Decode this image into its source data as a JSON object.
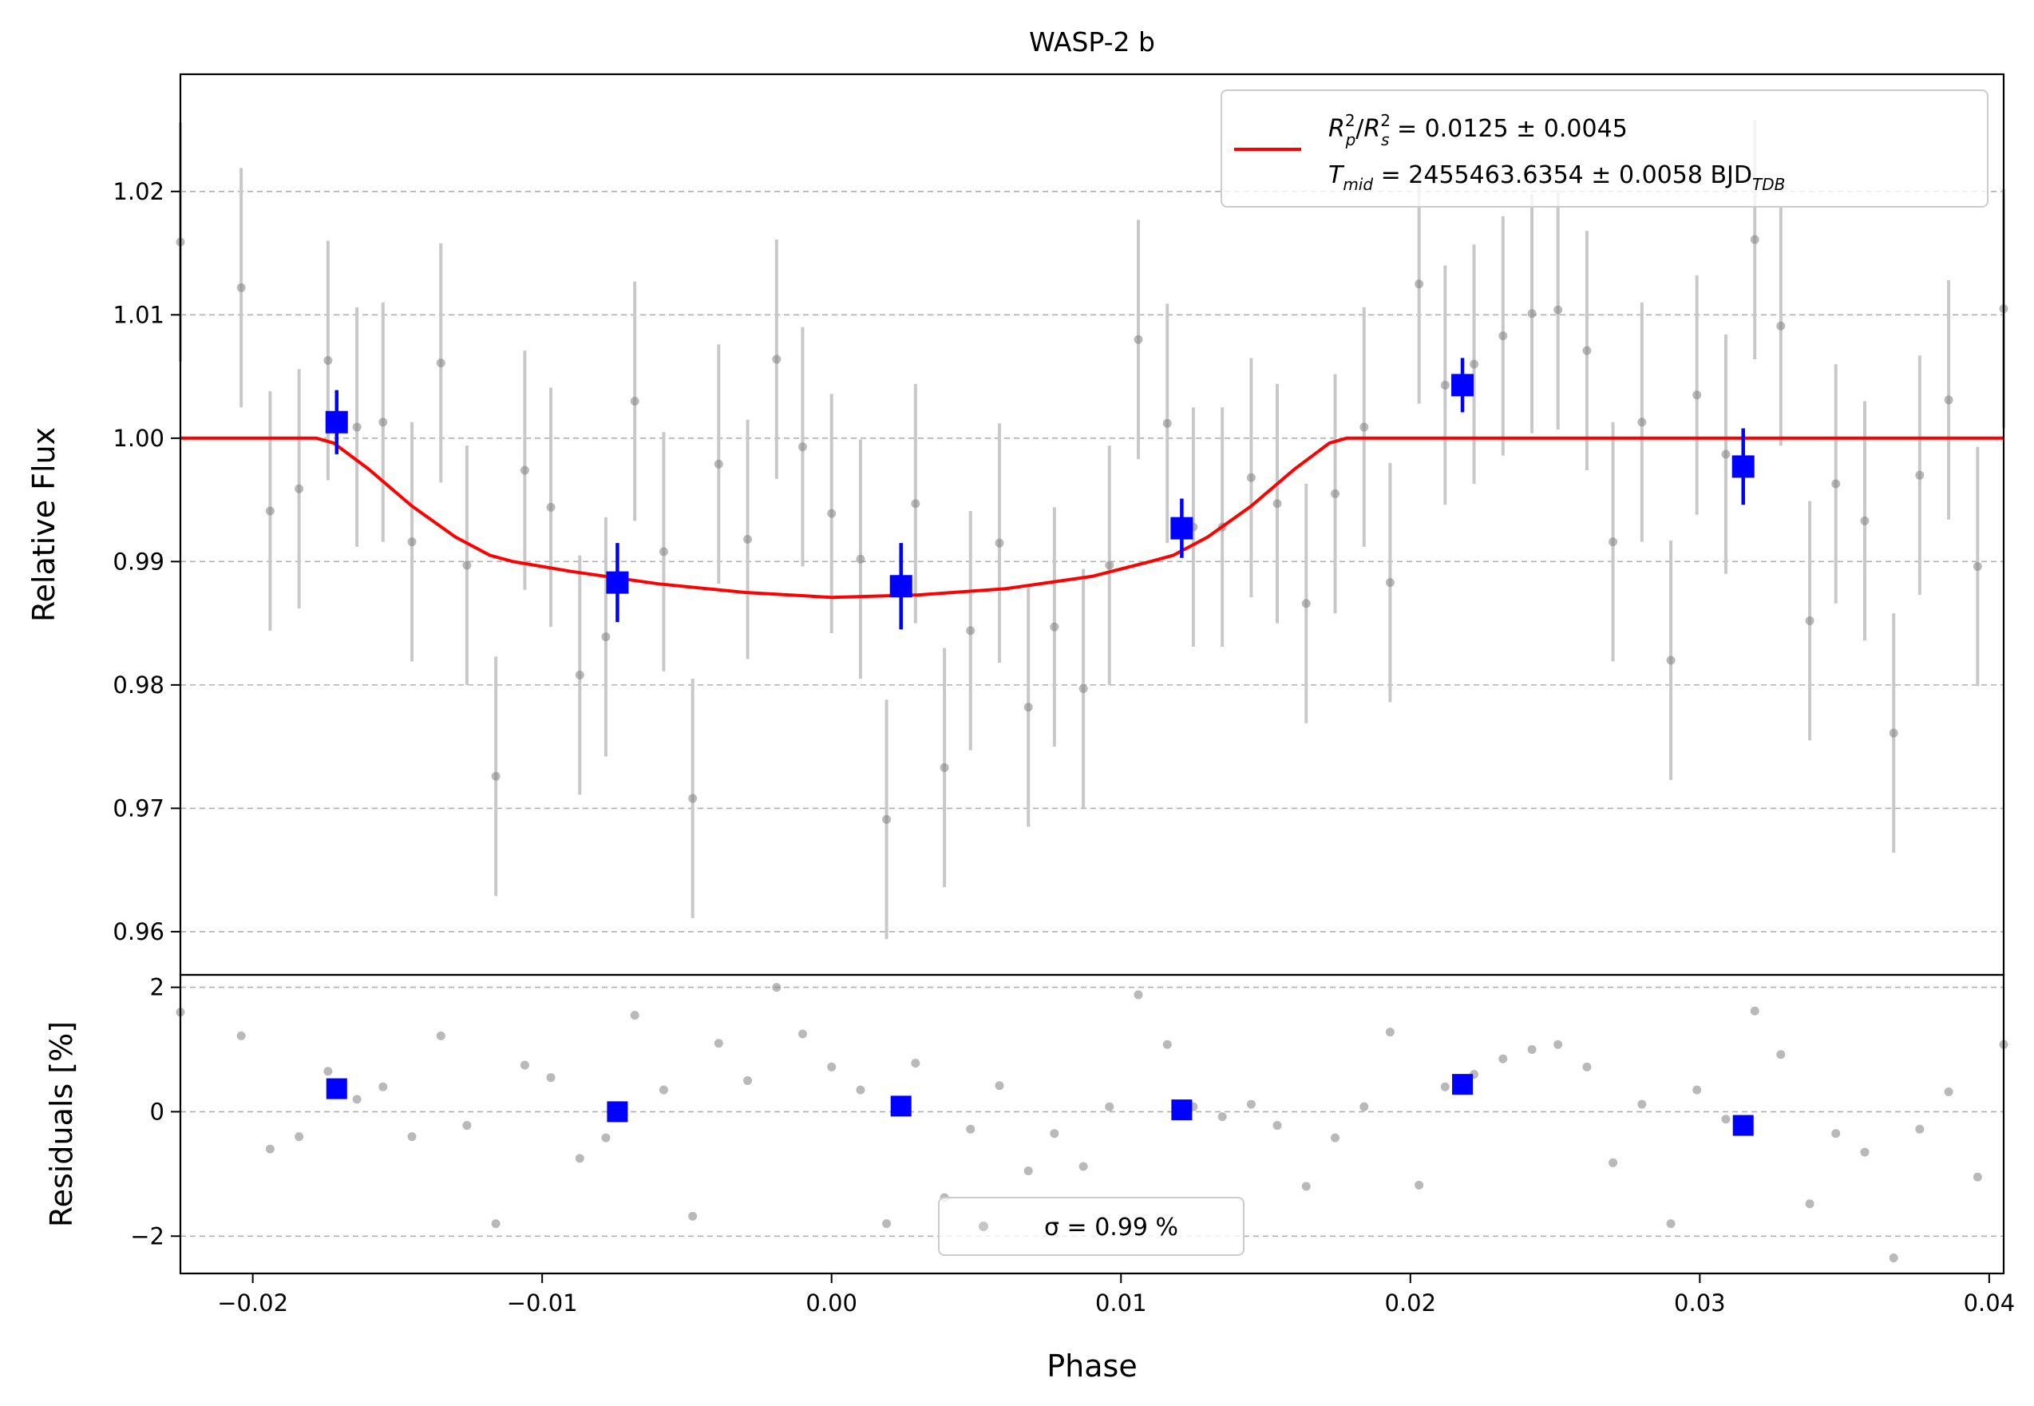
{
  "chart_data": {
    "type": "scatter",
    "title": "WASP-2 b",
    "xlabel": "Phase",
    "xlim": [
      -0.0225,
      0.0405
    ],
    "x_ticks": [
      "−0.02",
      "−0.01",
      "0.00",
      "0.01",
      "0.02",
      "0.03",
      "0.04"
    ],
    "x_tick_values": [
      -0.02,
      -0.01,
      0.0,
      0.01,
      0.02,
      0.03,
      0.04
    ],
    "grid": "horizontal dashed",
    "colors": {
      "data": "#808080",
      "errorbar": "#c8c8c8",
      "binned": "#0000ff",
      "model": "#ff0000",
      "grid": "#b0b0b0"
    },
    "top_panel": {
      "ylabel": "Relative Flux",
      "ylim": [
        0.9565,
        1.0295
      ],
      "y_ticks": [
        "0.96",
        "0.97",
        "0.98",
        "0.99",
        "1.00",
        "1.01",
        "1.02"
      ],
      "y_tick_values": [
        0.96,
        0.97,
        0.98,
        0.99,
        1.0,
        1.01,
        1.02
      ],
      "series": [
        {
          "kind": "data",
          "marker": "circle",
          "yerr": 0.0097,
          "points": [
            [
              -0.0225,
              1.0159
            ],
            [
              -0.0204,
              1.0122
            ],
            [
              -0.0194,
              0.9941
            ],
            [
              -0.0184,
              0.9959
            ],
            [
              -0.0174,
              1.0063
            ],
            [
              -0.0164,
              1.0009
            ],
            [
              -0.0155,
              1.0013
            ],
            [
              -0.0145,
              0.9916
            ],
            [
              -0.0135,
              1.0061
            ],
            [
              -0.0126,
              0.9897
            ],
            [
              -0.0116,
              0.9726
            ],
            [
              -0.0106,
              0.9974
            ],
            [
              -0.0097,
              0.9944
            ],
            [
              -0.0087,
              0.9808
            ],
            [
              -0.0078,
              0.9839
            ],
            [
              -0.0068,
              1.003
            ],
            [
              -0.0058,
              0.9908
            ],
            [
              -0.0048,
              0.9708
            ],
            [
              -0.0039,
              0.9979
            ],
            [
              -0.0029,
              0.9918
            ],
            [
              -0.0019,
              1.0064
            ],
            [
              -0.001,
              0.9993
            ],
            [
              0.0,
              0.9939
            ],
            [
              0.001,
              0.9902
            ],
            [
              0.0019,
              0.9691
            ],
            [
              0.0029,
              0.9947
            ],
            [
              0.0039,
              0.9733
            ],
            [
              0.0048,
              0.9844
            ],
            [
              0.0058,
              0.9915
            ],
            [
              0.0068,
              0.9782
            ],
            [
              0.0077,
              0.9847
            ],
            [
              0.0087,
              0.9797
            ],
            [
              0.0096,
              0.9897
            ],
            [
              0.0106,
              1.008
            ],
            [
              0.0116,
              1.0012
            ],
            [
              0.0125,
              0.9928
            ],
            [
              0.0135,
              0.9928
            ],
            [
              0.0145,
              0.9968
            ],
            [
              0.0154,
              0.9947
            ],
            [
              0.0164,
              0.9866
            ],
            [
              0.0174,
              0.9955
            ],
            [
              0.0184,
              1.0009
            ],
            [
              0.0193,
              0.9883
            ],
            [
              0.0203,
              1.0125
            ],
            [
              0.0212,
              1.0043
            ],
            [
              0.0222,
              1.006
            ],
            [
              0.0232,
              1.0083
            ],
            [
              0.0242,
              1.0101
            ],
            [
              0.0251,
              1.0104
            ],
            [
              0.0261,
              1.0071
            ],
            [
              0.027,
              0.9916
            ],
            [
              0.028,
              1.0013
            ],
            [
              0.029,
              0.982
            ],
            [
              0.0299,
              1.0035
            ],
            [
              0.0309,
              0.9987
            ],
            [
              0.0319,
              1.0161
            ],
            [
              0.0328,
              1.0091
            ],
            [
              0.0338,
              0.9852
            ],
            [
              0.0347,
              0.9963
            ],
            [
              0.0357,
              0.9933
            ],
            [
              0.0367,
              0.9761
            ],
            [
              0.0376,
              0.997
            ],
            [
              0.0386,
              1.0031
            ],
            [
              0.0396,
              0.9896
            ],
            [
              0.0405,
              1.0105
            ]
          ]
        },
        {
          "kind": "binned",
          "marker": "square",
          "points": [
            [
              -0.0171,
              1.0013,
              0.0026
            ],
            [
              -0.0074,
              0.9883,
              0.0032
            ],
            [
              0.0024,
              0.988,
              0.0035
            ],
            [
              0.0121,
              0.9927,
              0.0024
            ],
            [
              0.0218,
              1.0043,
              0.0022
            ],
            [
              0.0315,
              0.9977,
              0.0031
            ]
          ]
        },
        {
          "kind": "model",
          "legend": "R²ₚ/R²ₛ = 0.0125 ± 0.0045, T_mid = 2455463.6354 ± 0.0058 BJD_TDB",
          "points": [
            [
              -0.0225,
              1.0
            ],
            [
              -0.0178,
              1.0
            ],
            [
              -0.0172,
              0.9996
            ],
            [
              -0.016,
              0.9975
            ],
            [
              -0.0145,
              0.9945
            ],
            [
              -0.013,
              0.992
            ],
            [
              -0.0118,
              0.9905
            ],
            [
              -0.011,
              0.99
            ],
            [
              -0.009,
              0.9892
            ],
            [
              -0.006,
              0.9882
            ],
            [
              -0.003,
              0.9875
            ],
            [
              0.0,
              0.9871
            ],
            [
              0.003,
              0.9873
            ],
            [
              0.006,
              0.9878
            ],
            [
              0.009,
              0.9888
            ],
            [
              0.011,
              0.99
            ],
            [
              0.0118,
              0.9905
            ],
            [
              0.013,
              0.992
            ],
            [
              0.0145,
              0.9945
            ],
            [
              0.016,
              0.9975
            ],
            [
              0.0172,
              0.9996
            ],
            [
              0.0178,
              1.0
            ],
            [
              0.0405,
              1.0
            ]
          ]
        }
      ],
      "legend": {
        "position": "upper right",
        "line1": {
          "base1": "R",
          "sup1": "2",
          "sub1": "p",
          "slash": "/",
          "base2": "R",
          "sup2": "2",
          "sub2": "s",
          "rest": " = 0.0125 ± 0.0045"
        },
        "line2": {
          "base": "T",
          "sub": "mid",
          "rest": " = 2455463.6354 ± 0.0058 BJD",
          "sub2": "TDB"
        }
      }
    },
    "bottom_panel": {
      "ylabel": "Residuals [%]",
      "ylim": [
        -2.6,
        2.2
      ],
      "y_ticks": [
        "−2",
        "0",
        "2"
      ],
      "y_tick_values": [
        -2,
        0,
        2
      ],
      "series": [
        {
          "kind": "data",
          "marker": "circle",
          "points": [
            [
              -0.0225,
              1.6
            ],
            [
              -0.0204,
              1.22
            ],
            [
              -0.0194,
              -0.6
            ],
            [
              -0.0184,
              -0.4
            ],
            [
              -0.0174,
              0.65
            ],
            [
              -0.0164,
              0.2
            ],
            [
              -0.0155,
              0.4
            ],
            [
              -0.0145,
              -0.4
            ],
            [
              -0.0135,
              1.22
            ],
            [
              -0.0126,
              -0.22
            ],
            [
              -0.0116,
              -1.8
            ],
            [
              -0.0106,
              0.75
            ],
            [
              -0.0097,
              0.55
            ],
            [
              -0.0087,
              -0.75
            ],
            [
              -0.0078,
              -0.42
            ],
            [
              -0.0068,
              1.55
            ],
            [
              -0.0058,
              0.35
            ],
            [
              -0.0048,
              -1.68
            ],
            [
              -0.0039,
              1.1
            ],
            [
              -0.0029,
              0.5
            ],
            [
              -0.0019,
              2.0
            ],
            [
              -0.001,
              1.25
            ],
            [
              0.0,
              0.72
            ],
            [
              0.001,
              0.35
            ],
            [
              0.0019,
              -1.8
            ],
            [
              0.0029,
              0.78
            ],
            [
              0.0039,
              -1.38
            ],
            [
              0.0048,
              -0.28
            ],
            [
              0.0058,
              0.42
            ],
            [
              0.0068,
              -0.95
            ],
            [
              0.0077,
              -0.35
            ],
            [
              0.0087,
              -0.88
            ],
            [
              0.0096,
              0.08
            ],
            [
              0.0106,
              1.88
            ],
            [
              0.0116,
              1.08
            ],
            [
              0.0125,
              0.08
            ],
            [
              0.0135,
              -0.08
            ],
            [
              0.0145,
              0.12
            ],
            [
              0.0154,
              -0.22
            ],
            [
              0.0164,
              -1.2
            ],
            [
              0.0174,
              -0.42
            ],
            [
              0.0184,
              0.08
            ],
            [
              0.0193,
              1.28
            ],
            [
              0.0203,
              -1.18
            ],
            [
              0.0212,
              0.4
            ],
            [
              0.0222,
              0.6
            ],
            [
              0.0232,
              0.85
            ],
            [
              0.0242,
              1.0
            ],
            [
              0.0251,
              1.08
            ],
            [
              0.0261,
              0.72
            ],
            [
              0.027,
              -0.82
            ],
            [
              0.028,
              0.12
            ],
            [
              0.029,
              -1.8
            ],
            [
              0.0299,
              0.35
            ],
            [
              0.0309,
              -0.12
            ],
            [
              0.0319,
              1.62
            ],
            [
              0.0328,
              0.92
            ],
            [
              0.0338,
              -1.48
            ],
            [
              0.0347,
              -0.35
            ],
            [
              0.0357,
              -0.65
            ],
            [
              0.0367,
              -2.35
            ],
            [
              0.0376,
              -0.28
            ],
            [
              0.0386,
              0.32
            ],
            [
              0.0396,
              -1.05
            ],
            [
              0.0405,
              1.08
            ]
          ]
        },
        {
          "kind": "binned",
          "marker": "square",
          "points": [
            [
              -0.0171,
              0.37
            ],
            [
              -0.0074,
              0.0
            ],
            [
              0.0024,
              0.09
            ],
            [
              0.0121,
              0.03
            ],
            [
              0.0218,
              0.44
            ],
            [
              0.0315,
              -0.22
            ]
          ]
        }
      ],
      "legend": {
        "position": "lower center",
        "text": "σ = 0.99 %"
      }
    }
  }
}
